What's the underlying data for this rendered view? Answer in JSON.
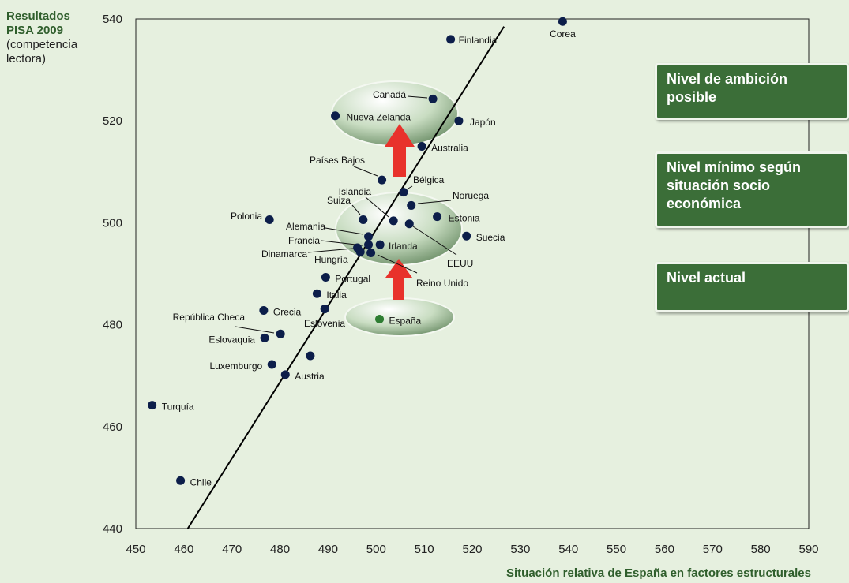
{
  "y_title": {
    "line1": "Resultados",
    "line2": "PISA 2009",
    "line3": "(competencia",
    "line4": "lectora)"
  },
  "boxes": {
    "ambition": "Nivel de ambición posible",
    "minimum": "Nivel mínimo según situación socio económica",
    "current": "Nivel actual"
  },
  "colors": {
    "background": "#e6f0df",
    "box": "#3b6e38",
    "point": "#0c1e4a",
    "highlight": "#2e7d32",
    "arrow": "#e8322b",
    "bold_text": "#2f5e2c"
  },
  "chart_data": {
    "type": "scatter",
    "xlabel": "Situación relativa de España en factores estructurales",
    "ylabel": "Resultados PISA 2009 (competencia lectora)",
    "xlim": [
      450,
      590
    ],
    "ylim": [
      440,
      540
    ],
    "x_ticks": [
      450,
      460,
      470,
      480,
      490,
      500,
      510,
      520,
      530,
      540,
      550,
      560,
      570,
      580,
      590
    ],
    "y_ticks": [
      440,
      460,
      480,
      500,
      520,
      540
    ],
    "grid": false,
    "trendline": {
      "x1": 460.8,
      "y1": 440,
      "x2": 526.6,
      "y2": 538.5
    },
    "points": [
      {
        "label": "Corea",
        "x": 538.8,
        "y": 539.5
      },
      {
        "label": "Finlandia",
        "x": 515.5,
        "y": 536
      },
      {
        "label": "Canadá",
        "x": 511.8,
        "y": 524.3
      },
      {
        "label": "Nueva Zelanda",
        "x": 491.5,
        "y": 521
      },
      {
        "label": "Japón",
        "x": 517.2,
        "y": 520
      },
      {
        "label": "Australia",
        "x": 509.5,
        "y": 515
      },
      {
        "label": "Países Bajos",
        "x": 501.2,
        "y": 508.4
      },
      {
        "label": "Bélgica",
        "x": 505.7,
        "y": 506
      },
      {
        "label": "Noruega",
        "x": 507.3,
        "y": 503.4
      },
      {
        "label": "Estonia",
        "x": 512.7,
        "y": 501.2
      },
      {
        "label": "Suiza",
        "x": 497.3,
        "y": 500.6
      },
      {
        "label": "Islandia",
        "x": 503.6,
        "y": 500.4
      },
      {
        "label": "EEUU",
        "x": 506.9,
        "y": 499.8
      },
      {
        "label": "Polonia",
        "x": 477.8,
        "y": 500.6
      },
      {
        "label": "Suecia",
        "x": 518.8,
        "y": 497.4
      },
      {
        "label": "Alemania",
        "x": 498.4,
        "y": 497.3
      },
      {
        "label": "Irlanda",
        "x": 500.8,
        "y": 495.7
      },
      {
        "label": "Francia",
        "x": 498.4,
        "y": 495.7
      },
      {
        "label": "Dinamarca",
        "x": 496.1,
        "y": 495.1
      },
      {
        "label": "Hungría",
        "x": 496.7,
        "y": 494.3
      },
      {
        "label": "Reino Unido",
        "x": 498.9,
        "y": 494.1
      },
      {
        "label": "Portugal",
        "x": 489.5,
        "y": 489.3
      },
      {
        "label": "Italia",
        "x": 487.7,
        "y": 486.1
      },
      {
        "label": "Grecia",
        "x": 476.6,
        "y": 482.8
      },
      {
        "label": "Eslovenia",
        "x": 489.3,
        "y": 483.1
      },
      {
        "label": "España",
        "x": 500.7,
        "y": 481.1,
        "highlight": true
      },
      {
        "label": "República Checa",
        "x": 480.1,
        "y": 478.2
      },
      {
        "label": "Eslovaquia",
        "x": 476.8,
        "y": 477.4
      },
      {
        "label": "",
        "x": 486.3,
        "y": 473.9
      },
      {
        "label": "Luxemburgo",
        "x": 478.3,
        "y": 472.2
      },
      {
        "label": "Austria",
        "x": 481.1,
        "y": 470.2
      },
      {
        "label": "Turquía",
        "x": 453.4,
        "y": 464.2
      },
      {
        "label": "Chile",
        "x": 459.3,
        "y": 449.4
      }
    ]
  }
}
